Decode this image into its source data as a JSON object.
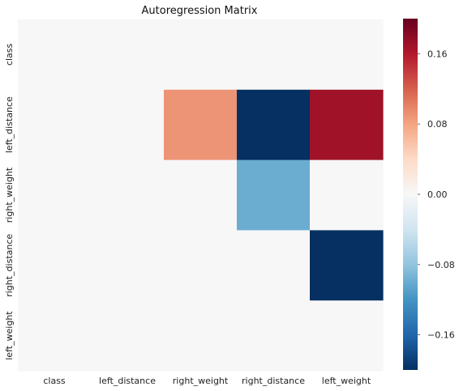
{
  "chart_data": {
    "type": "heatmap",
    "title": "Autoregression Matrix",
    "x_labels": [
      "class",
      "left_distance",
      "right_weight",
      "right_distance",
      "left_weight"
    ],
    "y_labels": [
      "class",
      "left_distance",
      "right_weight",
      "right_distance",
      "left_weight"
    ],
    "values": [
      [
        0,
        0,
        0,
        0,
        0
      ],
      [
        0,
        0,
        0.09,
        -0.2,
        0.17
      ],
      [
        0,
        0,
        0,
        -0.1,
        0
      ],
      [
        0,
        0,
        0,
        0,
        -0.2
      ],
      [
        0,
        0,
        0,
        0,
        0
      ]
    ],
    "colorbar": {
      "vmin": -0.2,
      "vmax": 0.2,
      "ticks": [
        0.16,
        0.08,
        0.0,
        -0.08,
        -0.16
      ],
      "tick_labels": [
        "0.16",
        "0.08",
        "0.00",
        "−0.08",
        "−0.16"
      ],
      "colormap": "RdBu_r",
      "colors": [
        "#053061",
        "#2166ac",
        "#4393c3",
        "#92c5de",
        "#d1e5f0",
        "#f7f7f7",
        "#fddbc7",
        "#f4a582",
        "#d6604d",
        "#b2182b",
        "#67001f"
      ]
    },
    "grid": false
  }
}
